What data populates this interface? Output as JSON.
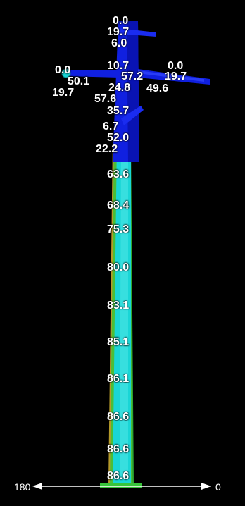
{
  "colors": {
    "background": "#000000",
    "tower_fill": "#19d6d6",
    "tower_outline_green": "#37c43a",
    "tower_outline_gold": "#b59a2a",
    "arm_blue": "#1020e0",
    "arm_blue_light": "#3548ff",
    "axis_line": "#ffffff",
    "label_color": "#ffffff"
  },
  "labels": {
    "top_a": "0.0",
    "top_b": "19.7",
    "top_c": "6.0",
    "left_a": "0.0",
    "left_b": "50.1",
    "left_c": "19.7",
    "mid_a": "10.7",
    "mid_b": "57.2",
    "mid_c": "24.8",
    "mid_d": "57.6",
    "right_a": "0.0",
    "right_b": "19.7",
    "right_c": "49.6",
    "upper_a": "35.7",
    "upper_b": "6.7",
    "upper_c": "52.0",
    "upper_d": "22.2",
    "shaft_1": "63.6",
    "shaft_2": "68.4",
    "shaft_3": "75.3",
    "shaft_4": "80.0",
    "shaft_5": "83.1",
    "shaft_6": "85.1",
    "shaft_7": "86.1",
    "shaft_8": "86.6",
    "shaft_9": "86.6",
    "shaft_10": "86.6"
  },
  "axis": {
    "left_value": "180",
    "right_value": "0"
  }
}
